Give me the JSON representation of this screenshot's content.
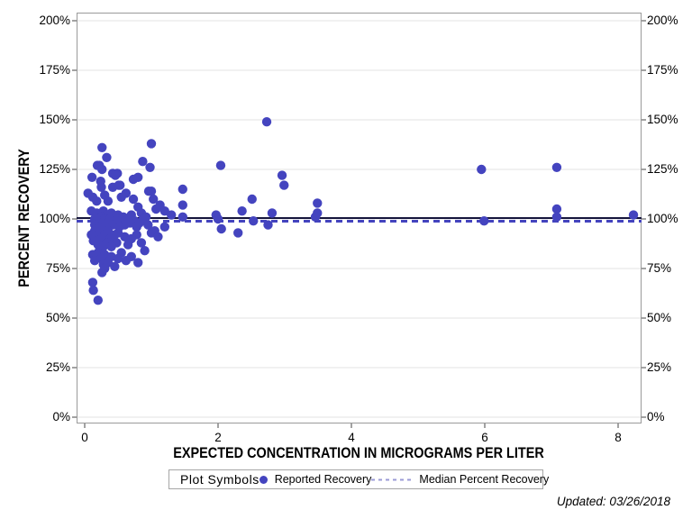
{
  "figure": {
    "y_axis": {
      "title": "PERCENT RECOVERY"
    },
    "x_axis": {
      "title": "EXPECTED CONCENTRATION IN MICROGRAMS PER LITER"
    },
    "legend": {
      "title": "Plot Symbols",
      "items": [
        {
          "label": "Reported Recovery",
          "marker": "filled-circle-icon",
          "color": "#4444bf"
        },
        {
          "label": "Median Percent Recovery",
          "marker": "dashed-line-icon",
          "color": "#9a9ad6"
        }
      ]
    },
    "footnote": "Updated: 03/26/2018",
    "colors": {
      "point": "#4444bf",
      "median_solid": "#15153c",
      "median_dashed": "#4444bf",
      "gridline": "#e3e3e3",
      "plot_border": "#9a9a9a",
      "tick": "#444444",
      "legend_dash": "#9a9ad6"
    }
  },
  "chart_data": {
    "type": "scatter",
    "title": "",
    "xlabel": "EXPECTED CONCENTRATION IN MICROGRAMS PER LITER",
    "ylabel": "PERCENT RECOVERY",
    "xlim": [
      -0.12,
      8.35
    ],
    "ylim": [
      -3,
      204
    ],
    "x_ticks": [
      0,
      2,
      4,
      6,
      8
    ],
    "y_ticks": [
      0,
      25,
      50,
      75,
      100,
      125,
      150,
      175,
      200
    ],
    "y_tick_suffix": "%",
    "grid": "horizontal",
    "legend_position": "bottom",
    "series": [
      {
        "name": "Reported Recovery",
        "type": "scatter",
        "points": [
          [
            2.73,
            149
          ],
          [
            1.0,
            138
          ],
          [
            0.26,
            136
          ],
          [
            0.33,
            131
          ],
          [
            0.87,
            129
          ],
          [
            0.19,
            127
          ],
          [
            0.22,
            127
          ],
          [
            2.04,
            127
          ],
          [
            0.98,
            126
          ],
          [
            7.08,
            126
          ],
          [
            0.26,
            125
          ],
          [
            5.95,
            125
          ],
          [
            0.42,
            123
          ],
          [
            0.49,
            123
          ],
          [
            0.46,
            122
          ],
          [
            2.96,
            122
          ],
          [
            0.11,
            121
          ],
          [
            0.8,
            121
          ],
          [
            0.73,
            120
          ],
          [
            0.24,
            119
          ],
          [
            0.51,
            117
          ],
          [
            0.53,
            117
          ],
          [
            2.99,
            117
          ],
          [
            0.25,
            116
          ],
          [
            0.42,
            116
          ],
          [
            1.47,
            115
          ],
          [
            0.96,
            114
          ],
          [
            1.0,
            114
          ],
          [
            0.05,
            113
          ],
          [
            0.62,
            113
          ],
          [
            0.3,
            112
          ],
          [
            0.12,
            111
          ],
          [
            0.55,
            111
          ],
          [
            0.73,
            110
          ],
          [
            1.03,
            110
          ],
          [
            2.51,
            110
          ],
          [
            0.18,
            109
          ],
          [
            0.35,
            109
          ],
          [
            3.49,
            108
          ],
          [
            1.13,
            107
          ],
          [
            1.47,
            107
          ],
          [
            0.8,
            106
          ],
          [
            1.07,
            105
          ],
          [
            7.08,
            105
          ],
          [
            0.1,
            104
          ],
          [
            0.28,
            104
          ],
          [
            1.2,
            104
          ],
          [
            2.36,
            104
          ],
          [
            0.18,
            103
          ],
          [
            0.4,
            103
          ],
          [
            0.85,
            103
          ],
          [
            2.81,
            103
          ],
          [
            3.49,
            103
          ],
          [
            0.33,
            102
          ],
          [
            0.5,
            102
          ],
          [
            0.7,
            102
          ],
          [
            1.3,
            102
          ],
          [
            1.97,
            102
          ],
          [
            8.23,
            102
          ],
          [
            0.25,
            101
          ],
          [
            0.45,
            101
          ],
          [
            0.58,
            101
          ],
          [
            0.92,
            101
          ],
          [
            1.47,
            101
          ],
          [
            3.46,
            101
          ],
          [
            7.08,
            101
          ],
          [
            0.15,
            100
          ],
          [
            0.3,
            100
          ],
          [
            0.38,
            100
          ],
          [
            0.65,
            100
          ],
          [
            0.88,
            100
          ],
          [
            2.0,
            100
          ],
          [
            0.2,
            99
          ],
          [
            0.48,
            99
          ],
          [
            0.75,
            99
          ],
          [
            2.53,
            99
          ],
          [
            5.99,
            99
          ],
          [
            0.25,
            98
          ],
          [
            0.35,
            98
          ],
          [
            0.68,
            98
          ],
          [
            0.82,
            98
          ],
          [
            0.15,
            97
          ],
          [
            0.42,
            97
          ],
          [
            0.6,
            97
          ],
          [
            0.95,
            97
          ],
          [
            2.75,
            97
          ],
          [
            0.22,
            96
          ],
          [
            0.3,
            96
          ],
          [
            0.52,
            96
          ],
          [
            0.78,
            96
          ],
          [
            1.2,
            96
          ],
          [
            2.05,
            95
          ],
          [
            0.15,
            94
          ],
          [
            0.35,
            94
          ],
          [
            1.05,
            94
          ],
          [
            0.22,
            93
          ],
          [
            0.5,
            93
          ],
          [
            1.0,
            93
          ],
          [
            2.3,
            93
          ],
          [
            0.1,
            92
          ],
          [
            0.3,
            92
          ],
          [
            0.45,
            92
          ],
          [
            0.78,
            92
          ],
          [
            0.18,
            91
          ],
          [
            0.6,
            91
          ],
          [
            1.1,
            91
          ],
          [
            0.25,
            90
          ],
          [
            0.38,
            90
          ],
          [
            0.7,
            90
          ],
          [
            0.13,
            89
          ],
          [
            0.33,
            88
          ],
          [
            0.48,
            88
          ],
          [
            0.85,
            88
          ],
          [
            0.2,
            87
          ],
          [
            0.65,
            87
          ],
          [
            0.28,
            86
          ],
          [
            0.4,
            86
          ],
          [
            0.9,
            84
          ],
          [
            0.2,
            83
          ],
          [
            0.55,
            83
          ],
          [
            0.12,
            82
          ],
          [
            0.3,
            82
          ],
          [
            0.4,
            81
          ],
          [
            0.7,
            81
          ],
          [
            0.25,
            80
          ],
          [
            0.5,
            80
          ],
          [
            0.15,
            79
          ],
          [
            0.62,
            79
          ],
          [
            0.28,
            77
          ],
          [
            0.35,
            78
          ],
          [
            0.8,
            78
          ],
          [
            0.45,
            76
          ],
          [
            0.3,
            75
          ],
          [
            0.26,
            73
          ],
          [
            0.12,
            68
          ],
          [
            0.13,
            64
          ],
          [
            0.2,
            59
          ]
        ]
      },
      {
        "name": "Median Percent Recovery",
        "type": "hline",
        "y": 100
      }
    ]
  }
}
